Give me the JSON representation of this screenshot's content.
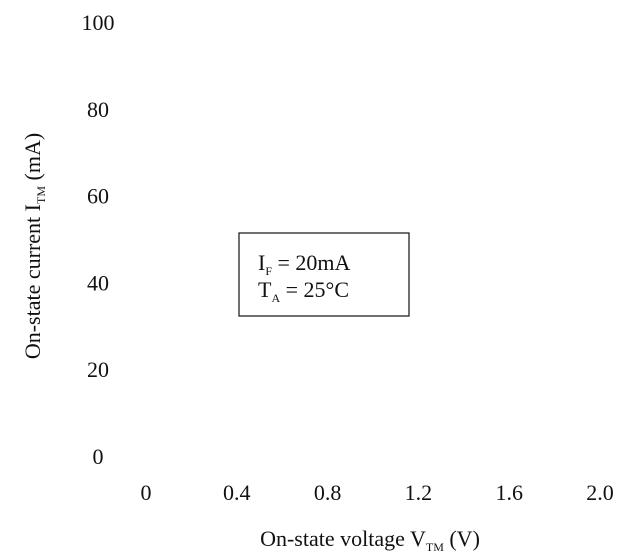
{
  "chart_data": {
    "type": "line",
    "title": "",
    "xlabel": {
      "main": "On-state voltage V",
      "subscript": "TM",
      "unit": " (V)"
    },
    "ylabel": {
      "main": "On-state current I",
      "subscript": "TM",
      "unit": " (mA)"
    },
    "x_ticks": [
      "0",
      "0.4",
      "0.8",
      "1.2",
      "1.6",
      "2.0"
    ],
    "y_ticks": [
      "0",
      "20",
      "40",
      "60",
      "80",
      "100"
    ],
    "xlim": [
      0,
      2.0
    ],
    "ylim": [
      0,
      100
    ],
    "grid": false,
    "series": [],
    "annotation": {
      "line1": {
        "main": "I",
        "subscript": "F",
        "rest": " = 20mA"
      },
      "line2": {
        "main": "T",
        "subscript": "A",
        "rest": " = 25°C"
      }
    }
  }
}
